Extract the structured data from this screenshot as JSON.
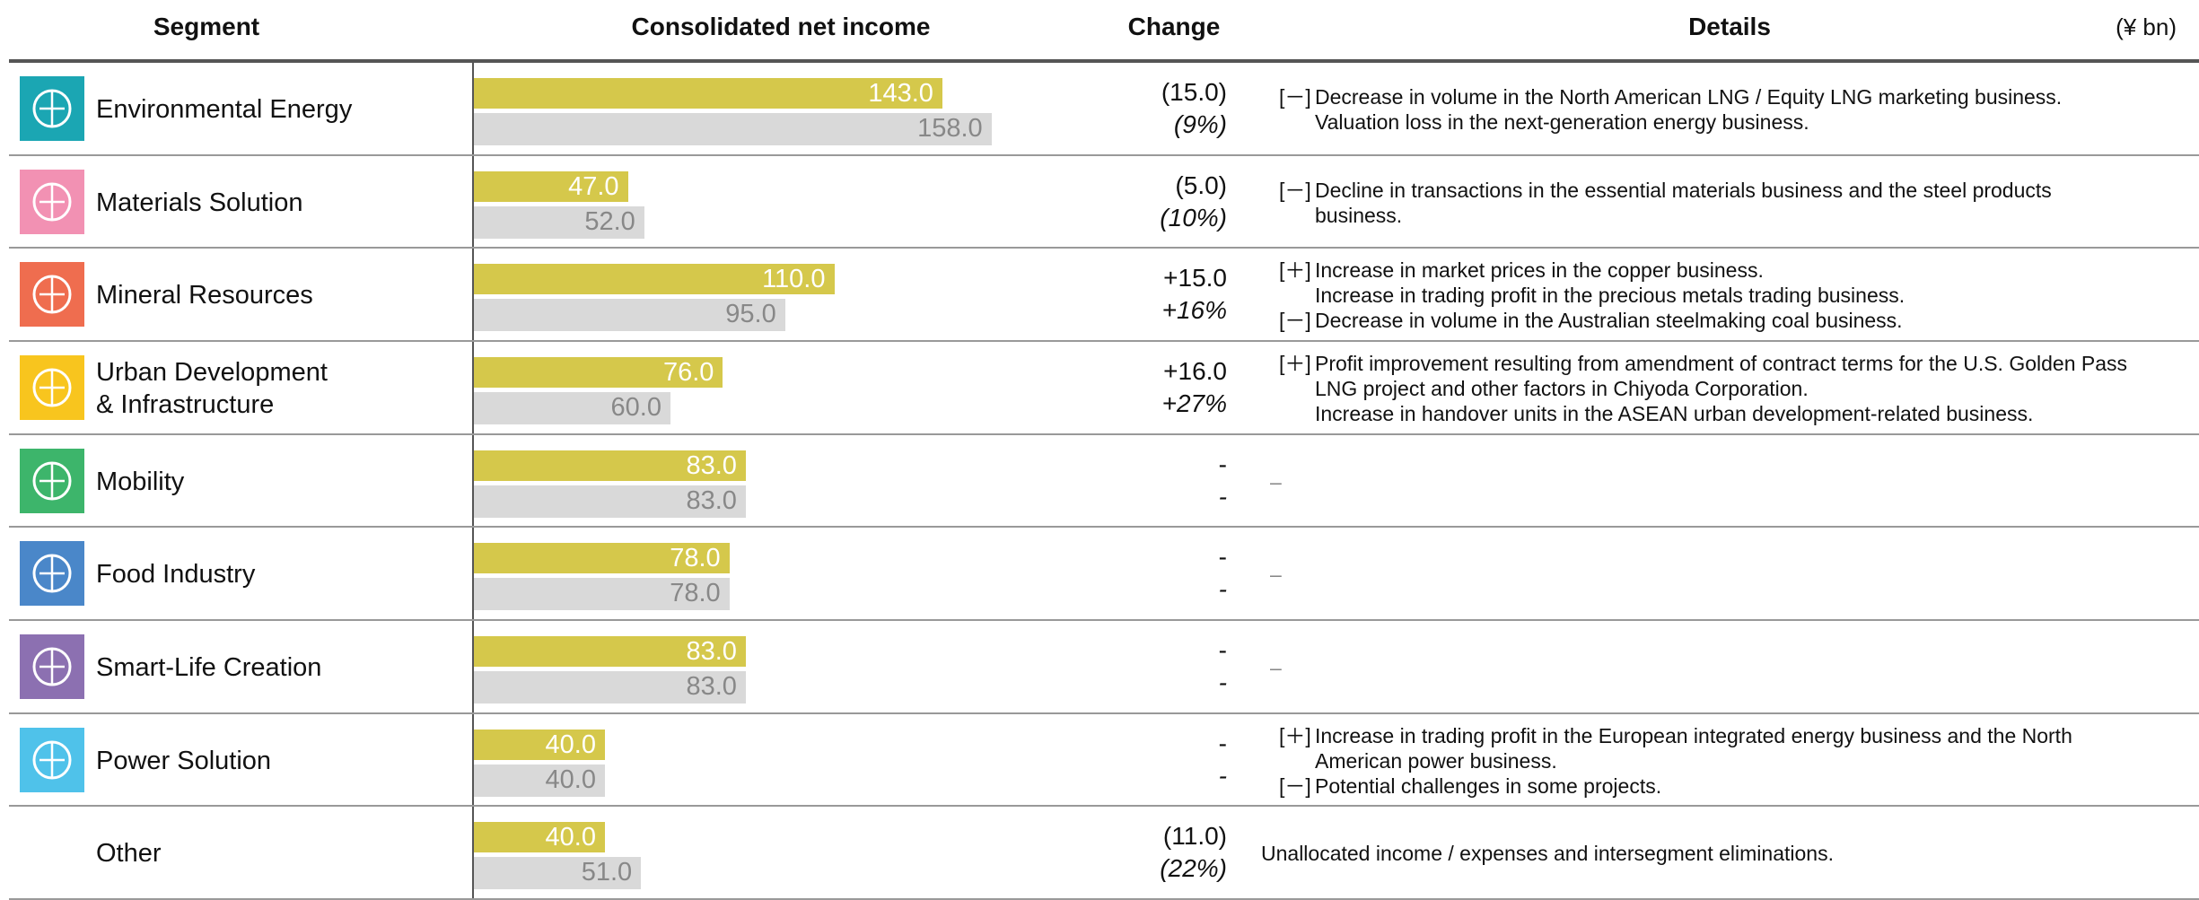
{
  "header": {
    "segment": "Segment",
    "income": "Consolidated net income",
    "change": "Change",
    "details": "Details",
    "unit": "(¥ bn)"
  },
  "bar_colors": {
    "current": "#d5c84b",
    "previous": "#d9d9d9"
  },
  "rows": [
    {
      "name": [
        "Environmental Energy"
      ],
      "icon_color": "#1ba6b3",
      "current": 143,
      "current_label": "143.0",
      "previous": 158,
      "previous_label": "158.0",
      "change": "(15.0)",
      "change_pct": "(9%)",
      "details": [
        {
          "marker": "[－]",
          "lines": [
            "Decrease in volume in the North American LNG / Equity LNG marketing business.",
            "Valuation loss in the next-generation energy business."
          ]
        }
      ]
    },
    {
      "name": [
        "Materials Solution"
      ],
      "icon_color": "#f291b3",
      "current": 47,
      "current_label": "47.0",
      "previous": 52,
      "previous_label": "52.0",
      "change": "(5.0)",
      "change_pct": "(10%)",
      "details": [
        {
          "marker": "[－]",
          "lines": [
            "Decline in transactions in the essential materials business and the steel products",
            "business."
          ]
        }
      ]
    },
    {
      "name": [
        "Mineral Resources"
      ],
      "icon_color": "#ef6d4f",
      "current": 110,
      "current_label": "110.0",
      "previous": 95,
      "previous_label": "95.0",
      "change": "+15.0",
      "change_pct": "+16%",
      "details": [
        {
          "marker": "[＋]",
          "lines": [
            "Increase in market prices in the copper business.",
            "Increase in trading profit in the precious metals trading business."
          ]
        },
        {
          "marker": "[－]",
          "lines": [
            "Decrease in volume in the Australian steelmaking coal business."
          ]
        }
      ]
    },
    {
      "name": [
        "Urban Development",
        "& Infrastructure"
      ],
      "icon_color": "#f8c51e",
      "current": 76,
      "current_label": "76.0",
      "previous": 60,
      "previous_label": "60.0",
      "change": "+16.0",
      "change_pct": "+27%",
      "details": [
        {
          "marker": "[＋]",
          "lines": [
            "Profit improvement resulting from amendment of contract terms for the U.S. Golden Pass",
            "LNG project and other factors in Chiyoda Corporation.",
            "Increase in handover units in the ASEAN urban development-related business."
          ]
        }
      ]
    },
    {
      "name": [
        "Mobility"
      ],
      "icon_color": "#3db56b",
      "current": 83,
      "current_label": "83.0",
      "previous": 83,
      "previous_label": "83.0",
      "change": "-",
      "change_pct": "-",
      "details": [
        {
          "lines": [
            "–"
          ]
        }
      ]
    },
    {
      "name": [
        "Food Industry"
      ],
      "icon_color": "#4a87c9",
      "current": 78,
      "current_label": "78.0",
      "previous": 78,
      "previous_label": "78.0",
      "change": "-",
      "change_pct": "-",
      "details": [
        {
          "lines": [
            "–"
          ]
        }
      ]
    },
    {
      "name": [
        "Smart-Life Creation"
      ],
      "icon_color": "#8c70b1",
      "current": 83,
      "current_label": "83.0",
      "previous": 83,
      "previous_label": "83.0",
      "change": "-",
      "change_pct": "-",
      "details": [
        {
          "lines": [
            "–"
          ]
        }
      ]
    },
    {
      "name": [
        "Power Solution"
      ],
      "icon_color": "#4fc2ea",
      "current": 40,
      "current_label": "40.0",
      "previous": 40,
      "previous_label": "40.0",
      "change": "-",
      "change_pct": "-",
      "details": [
        {
          "marker": "[＋]",
          "lines": [
            "Increase in trading profit in the European integrated energy business and the North",
            "American power business."
          ]
        },
        {
          "marker": "[－]",
          "lines": [
            "Potential challenges in some projects."
          ]
        }
      ]
    },
    {
      "name": [
        "Other"
      ],
      "current": 40,
      "current_label": "40.0",
      "previous": 51,
      "previous_label": "51.0",
      "change": "(11.0)",
      "change_pct": "(22%)",
      "details": [
        {
          "lines": [
            "Unallocated income / expenses and intersegment eliminations."
          ]
        }
      ]
    }
  ]
}
